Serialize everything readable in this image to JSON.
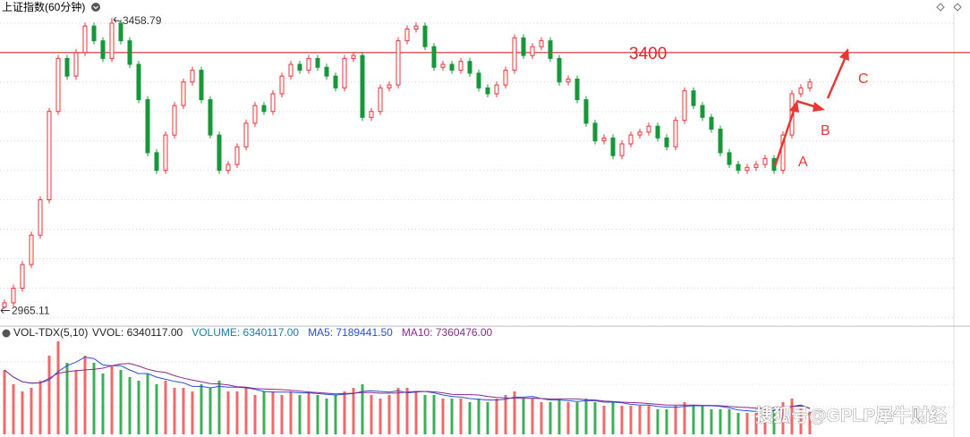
{
  "header": {
    "title": "上证指数(60分钟)"
  },
  "chart_data": [
    {
      "type": "candlestick",
      "open": [
        2968,
        2975,
        3000,
        3040,
        3090,
        3150,
        3300,
        3390,
        3360,
        3400,
        3445,
        3420,
        3390,
        3450,
        3420,
        3380,
        3320,
        3230,
        3200,
        3260,
        3310,
        3350,
        3370,
        3320,
        3260,
        3200,
        3210,
        3240,
        3280,
        3310,
        3300,
        3330,
        3360,
        3380,
        3370,
        3390,
        3375,
        3360,
        3340,
        3390,
        3395,
        3290,
        3300,
        3340,
        3345,
        3420,
        3440,
        3445,
        3410,
        3375,
        3380,
        3370,
        3385,
        3365,
        3340,
        3330,
        3345,
        3370,
        3425,
        3395,
        3410,
        3420,
        3390,
        3350,
        3355,
        3320,
        3280,
        3250,
        3255,
        3225,
        3245,
        3260,
        3265,
        3275,
        3255,
        3240,
        3285,
        3335,
        3310,
        3290,
        3270,
        3230,
        3210,
        3200,
        3205,
        3210,
        3220,
        3200,
        3260,
        3330,
        3340
      ],
      "high": [
        2981,
        3006,
        3046,
        3096,
        3156,
        3306,
        3396,
        3396,
        3406,
        3451,
        3451,
        3426,
        3458.79,
        3456,
        3426,
        3386,
        3326,
        3236,
        3266,
        3316,
        3356,
        3376,
        3376,
        3326,
        3266,
        3216,
        3246,
        3286,
        3316,
        3316,
        3336,
        3366,
        3386,
        3386,
        3396,
        3396,
        3381,
        3366,
        3396,
        3401,
        3401,
        3306,
        3346,
        3351,
        3426,
        3446,
        3451,
        3451,
        3416,
        3386,
        3386,
        3391,
        3391,
        3371,
        3346,
        3351,
        3376,
        3431,
        3431,
        3416,
        3426,
        3426,
        3396,
        3361,
        3361,
        3326,
        3286,
        3261,
        3261,
        3251,
        3266,
        3271,
        3281,
        3281,
        3261,
        3291,
        3341,
        3341,
        3316,
        3296,
        3276,
        3236,
        3216,
        3211,
        3216,
        3226,
        3226,
        3266,
        3336,
        3346,
        3356
      ],
      "low": [
        2965.11,
        2969,
        2994,
        3034,
        3084,
        3144,
        3294,
        3354,
        3354,
        3394,
        3414,
        3384,
        3384,
        3414,
        3374,
        3314,
        3224,
        3194,
        3194,
        3254,
        3304,
        3344,
        3314,
        3254,
        3194,
        3194,
        3204,
        3234,
        3274,
        3294,
        3294,
        3324,
        3354,
        3364,
        3364,
        3369,
        3354,
        3334,
        3334,
        3384,
        3284,
        3284,
        3294,
        3334,
        3339,
        3414,
        3434,
        3404,
        3369,
        3369,
        3364,
        3364,
        3359,
        3334,
        3324,
        3324,
        3339,
        3364,
        3389,
        3389,
        3404,
        3384,
        3344,
        3344,
        3314,
        3274,
        3244,
        3244,
        3219,
        3219,
        3239,
        3254,
        3259,
        3249,
        3234,
        3234,
        3279,
        3304,
        3284,
        3264,
        3224,
        3204,
        3194,
        3194,
        3199,
        3204,
        3194,
        3194,
        3254,
        3324,
        3334
      ],
      "close": [
        2975,
        3000,
        3040,
        3090,
        3150,
        3300,
        3390,
        3360,
        3400,
        3445,
        3420,
        3390,
        3450,
        3420,
        3380,
        3320,
        3230,
        3200,
        3260,
        3310,
        3350,
        3370,
        3320,
        3260,
        3200,
        3210,
        3240,
        3280,
        3310,
        3300,
        3330,
        3360,
        3380,
        3370,
        3390,
        3375,
        3360,
        3340,
        3390,
        3395,
        3290,
        3300,
        3340,
        3345,
        3420,
        3440,
        3445,
        3410,
        3375,
        3380,
        3370,
        3385,
        3365,
        3340,
        3330,
        3345,
        3370,
        3425,
        3395,
        3410,
        3420,
        3390,
        3350,
        3355,
        3320,
        3280,
        3250,
        3255,
        3225,
        3245,
        3260,
        3265,
        3275,
        3255,
        3240,
        3285,
        3335,
        3310,
        3290,
        3270,
        3230,
        3210,
        3200,
        3205,
        3210,
        3220,
        3200,
        3260,
        3330,
        3340,
        3350
      ],
      "ylim": [
        2940,
        3468
      ],
      "yticks": [
        2950,
        3000,
        3050,
        3100,
        3150,
        3200,
        3250,
        3300,
        3350,
        3400,
        3450
      ],
      "grid": true,
      "up_color": "#e8333a",
      "down_color": "#17963a",
      "reference_line": {
        "value": 3400,
        "color": "#d92b2b"
      },
      "wave_labels": [
        "A",
        "B",
        "C"
      ]
    },
    {
      "type": "volume",
      "indicator": "VOL-TDX(5,10)",
      "legend": [
        {
          "text": "VVOL: 6340117.00",
          "color": "#222222"
        },
        {
          "text": "VOLUME: 6340117.00",
          "color": "#1a7f9a"
        },
        {
          "text": "MA5: 7189441.50",
          "color": "#2a4fd6"
        },
        {
          "text": "MA10: 7360476.00",
          "color": "#8a2a8a"
        }
      ],
      "values": [
        18000000,
        14000000,
        12000000,
        13000000,
        15000000,
        22000000,
        26000000,
        20000000,
        18000000,
        22000000,
        20000000,
        17000000,
        19000000,
        18000000,
        16000000,
        15000000,
        17000000,
        14000000,
        15000000,
        13000000,
        13000000,
        12000000,
        14000000,
        13000000,
        15000000,
        12000000,
        12000000,
        13000000,
        11000000,
        12000000,
        12000000,
        11000000,
        12000000,
        11000000,
        12000000,
        11000000,
        10000000,
        11000000,
        12000000,
        13000000,
        14000000,
        11000000,
        10000000,
        11000000,
        13000000,
        13000000,
        12000000,
        11000000,
        11000000,
        10000000,
        10000000,
        10000000,
        9000000,
        10000000,
        9000000,
        10000000,
        11000000,
        12000000,
        10000000,
        10000000,
        9000000,
        9000000,
        10000000,
        9000000,
        9000000,
        10000000,
        9000000,
        8000000,
        9000000,
        8000000,
        8000000,
        8000000,
        8000000,
        7000000,
        7000000,
        8000000,
        9000000,
        8000000,
        8000000,
        7000000,
        7000000,
        7000000,
        6000000,
        6000000,
        6000000,
        7000000,
        7000000,
        9000000,
        10000000,
        8000000,
        6340117
      ],
      "ma5": [
        18000000,
        16000000,
        14700000,
        14300000,
        14400000,
        15200000,
        17600000,
        19200000,
        20200000,
        21600000,
        21200000,
        19400000,
        19200000,
        19200000,
        18000000,
        17000000,
        17000000,
        16000000,
        15400000,
        14800000,
        14400000,
        13400000,
        13400000,
        13000000,
        13400000,
        13200000,
        13200000,
        13000000,
        12600000,
        12000000,
        11800000,
        11800000,
        11800000,
        11600000,
        11600000,
        11400000,
        11200000,
        11000000,
        11200000,
        11400000,
        12000000,
        12200000,
        12000000,
        11800000,
        12200000,
        11600000,
        11800000,
        12000000,
        11600000,
        11000000,
        10600000,
        10400000,
        10000000,
        9800000,
        9600000,
        9600000,
        9800000,
        10400000,
        10400000,
        10600000,
        10000000,
        9600000,
        9600000,
        9400000,
        9200000,
        9400000,
        9400000,
        9000000,
        9000000,
        8800000,
        8400000,
        8200000,
        8200000,
        7800000,
        7600000,
        7600000,
        7800000,
        8000000,
        8000000,
        8000000,
        7800000,
        7400000,
        6800000,
        6600000,
        6400000,
        6600000,
        6600000,
        7000000,
        7800000,
        8200000,
        7189441.5
      ],
      "ma10": [
        18000000,
        16000000,
        14700000,
        14300000,
        14400000,
        15700000,
        17100000,
        17500000,
        17800000,
        18000000,
        18200000,
        18500000,
        19200000,
        19700000,
        19800000,
        19100000,
        18200000,
        17600000,
        17300000,
        16400000,
        15700000,
        15200000,
        14700000,
        14200000,
        14100000,
        13800000,
        13300000,
        13200000,
        12800000,
        12700000,
        12600000,
        12500000,
        12300000,
        12100000,
        11800000,
        11700000,
        11500000,
        11300000,
        11400000,
        11500000,
        11700000,
        11700000,
        11500000,
        11500000,
        11600000,
        11800000,
        12000000,
        12000000,
        11900000,
        11600000,
        11200000,
        11100000,
        11100000,
        11000000,
        10600000,
        10300000,
        10200000,
        10100000,
        10100000,
        10100000,
        10000000,
        9900000,
        9900000,
        9900000,
        9900000,
        9700000,
        9600000,
        9300000,
        9200000,
        9000000,
        8900000,
        8800000,
        8600000,
        8400000,
        8200000,
        8200000,
        8200000,
        8200000,
        8100000,
        8100000,
        8000000,
        7800000,
        7600000,
        7500000,
        7300000,
        7300000,
        7400000,
        7600000,
        7800000,
        7900000,
        7360476
      ],
      "ylim": [
        0,
        26000000
      ],
      "ma5_color": "#2a4fd6",
      "ma10_color": "#8a2a8a"
    }
  ],
  "watermark": "搜狐号@GPLP犀牛财经"
}
